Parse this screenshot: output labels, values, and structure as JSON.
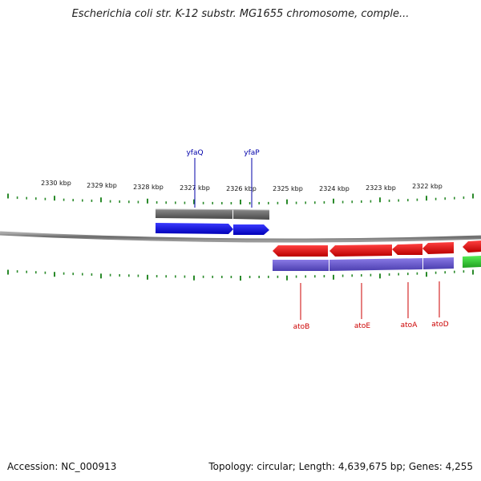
{
  "title": "Escherichia coli str. K-12 substr. MG1655 chromosome, comple...",
  "footer": {
    "accession": "Accession: NC_000913",
    "topology": "Topology: circular; Length: 4,639,675 bp; Genes: 4,255"
  },
  "scale": {
    "unit": "kbp",
    "labels": [
      "2330 kbp",
      "2329 kbp",
      "2328 kbp",
      "2327 kbp",
      "2326 kbp",
      "2325 kbp",
      "2324 kbp",
      "2323 kbp",
      "2322 kbp"
    ]
  },
  "genes": [
    {
      "name": "yfaQ",
      "strand": "+",
      "label_color": "#0000aa"
    },
    {
      "name": "yfaP",
      "strand": "+",
      "label_color": "#0000aa"
    },
    {
      "name": "atoB",
      "strand": "-",
      "label_color": "#cc0000"
    },
    {
      "name": "atoE",
      "strand": "-",
      "label_color": "#cc0000"
    },
    {
      "name": "atoA",
      "strand": "-",
      "label_color": "#cc0000"
    },
    {
      "name": "atoD",
      "strand": "-",
      "label_color": "#cc0000"
    }
  ],
  "colors": {
    "forward_cds": "#0a0af0",
    "reverse_cds": "#ee1111",
    "forward_gene": "#6b6b6b",
    "reverse_gene": "#6a5acd",
    "other_feature": "#33cc33",
    "tick": "#2a8a2a",
    "backbone": "#808080"
  }
}
